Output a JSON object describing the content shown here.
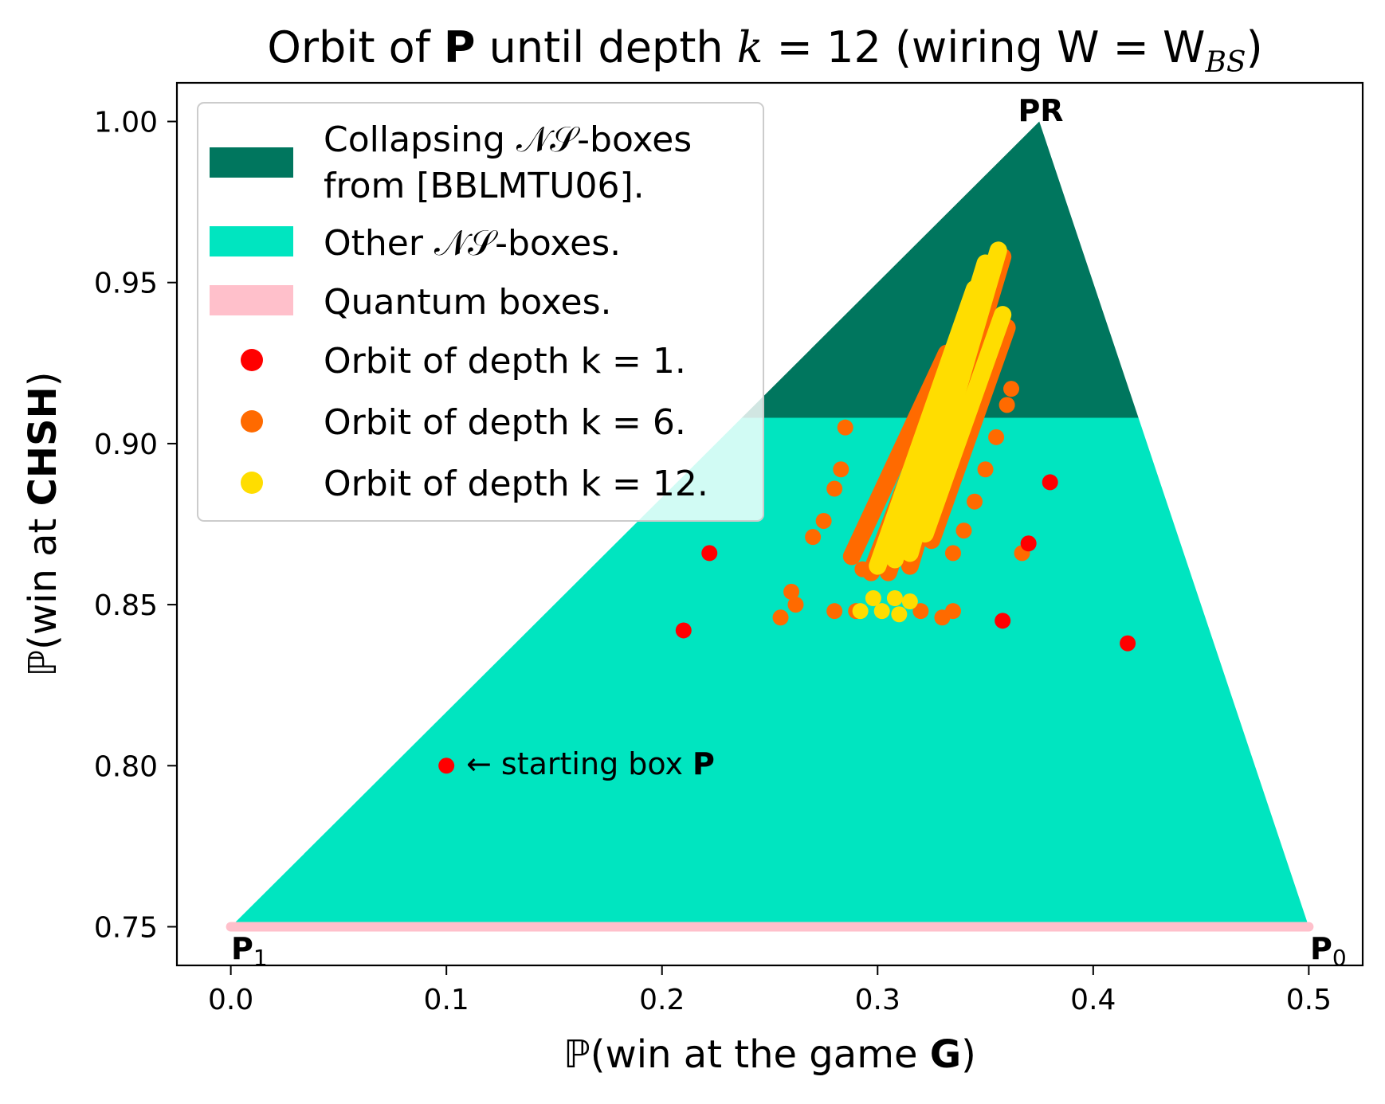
{
  "chart_data": {
    "type": "scatter",
    "title_parts": {
      "pre": "Orbit of ",
      "bold": "P",
      "mid": " until depth ",
      "k": "k",
      "eq": " = 12 (wiring W = W",
      "sub": "BS",
      "post": ")"
    },
    "xlabel_parts": {
      "pre": "ℙ(win at the game ",
      "bold": "G",
      "post": ")"
    },
    "ylabel_parts": {
      "pre": "ℙ(win at ",
      "bold": "CHSH",
      "post": ")"
    },
    "xlim": [
      -0.025,
      0.525
    ],
    "ylim": [
      0.738,
      1.012
    ],
    "xticks": [
      "0.0",
      "0.1",
      "0.2",
      "0.3",
      "0.4",
      "0.5"
    ],
    "yticks": [
      "0.75",
      "0.80",
      "0.85",
      "0.90",
      "0.95",
      "1.00"
    ],
    "regions": {
      "ns_polytope": [
        [
          0.0,
          0.75
        ],
        [
          0.375,
          1.0
        ],
        [
          0.5,
          0.75
        ]
      ],
      "collapse_threshold_y": 0.908
    },
    "quantum_segment": [
      [
        0.0,
        0.75
      ],
      [
        0.5,
        0.75
      ]
    ],
    "vertex_labels": {
      "pr": {
        "text": "PR",
        "x": 0.375,
        "y": 1.0
      },
      "p1": {
        "text": "P",
        "sub": "1",
        "x": 0.0,
        "y": 0.75
      },
      "p0": {
        "text": "P",
        "sub": "0",
        "x": 0.5,
        "y": 0.75
      }
    },
    "annotation": {
      "text": "← starting box ",
      "bold": "P",
      "x": 0.1,
      "y": 0.8
    },
    "legend": {
      "placement": "upper-left",
      "items": [
        {
          "kind": "patch",
          "line1": "Collapsing 𝒩𝒮-boxes",
          "line2": "from [BBLMTU06].",
          "color": "#00765e"
        },
        {
          "kind": "patch",
          "line1": "Other 𝒩𝒮-boxes.",
          "color": "#00e5c0"
        },
        {
          "kind": "patch",
          "line1": "Quantum boxes.",
          "color": "#ffc0cb"
        },
        {
          "kind": "dot",
          "line1": "Orbit of depth k = 1.",
          "color": "#ff0000"
        },
        {
          "kind": "dot",
          "line1": "Orbit of depth k = 6.",
          "color": "#ff6a00"
        },
        {
          "kind": "dot",
          "line1": "Orbit of depth k = 12.",
          "color": "#ffdd00"
        }
      ]
    },
    "colors": {
      "collapsing": "#00765e",
      "other_ns": "#00e5c0",
      "quantum": "#ffc0cb",
      "k1": "#ff0000",
      "k6": "#ff6a00",
      "k12": "#ffdd00"
    },
    "series": [
      {
        "name": "Orbit of depth k = 1.",
        "color": "#ff0000",
        "points": [
          [
            0.1,
            0.8
          ],
          [
            0.21,
            0.842
          ],
          [
            0.222,
            0.866
          ],
          [
            0.358,
            0.845
          ],
          [
            0.38,
            0.888
          ],
          [
            0.416,
            0.838
          ],
          [
            0.37,
            0.869
          ]
        ]
      },
      {
        "name": "Orbit of depth k = 6.",
        "color": "#ff6a00",
        "points": [
          [
            0.255,
            0.846
          ],
          [
            0.26,
            0.854
          ],
          [
            0.262,
            0.85
          ],
          [
            0.27,
            0.871
          ],
          [
            0.275,
            0.876
          ],
          [
            0.28,
            0.886
          ],
          [
            0.283,
            0.892
          ],
          [
            0.285,
            0.905
          ],
          [
            0.28,
            0.848
          ],
          [
            0.29,
            0.848
          ],
          [
            0.293,
            0.861
          ],
          [
            0.32,
            0.848
          ],
          [
            0.33,
            0.846
          ],
          [
            0.335,
            0.848
          ],
          [
            0.335,
            0.866
          ],
          [
            0.34,
            0.873
          ],
          [
            0.345,
            0.882
          ],
          [
            0.35,
            0.892
          ],
          [
            0.355,
            0.902
          ],
          [
            0.36,
            0.912
          ],
          [
            0.362,
            0.917
          ],
          [
            0.367,
            0.866
          ]
        ],
        "streaks": [
          {
            "from": [
              0.288,
              0.865
            ],
            "to": [
              0.332,
              0.928
            ]
          },
          {
            "from": [
              0.297,
              0.86
            ],
            "to": [
              0.345,
              0.942
            ]
          },
          {
            "from": [
              0.305,
              0.86
            ],
            "to": [
              0.352,
              0.955
            ]
          },
          {
            "from": [
              0.315,
              0.862
            ],
            "to": [
              0.358,
              0.958
            ]
          },
          {
            "from": [
              0.325,
              0.87
            ],
            "to": [
              0.36,
              0.936
            ]
          }
        ]
      },
      {
        "name": "Orbit of depth k = 12.",
        "color": "#ffdd00",
        "points": [
          [
            0.292,
            0.848
          ],
          [
            0.298,
            0.852
          ],
          [
            0.302,
            0.848
          ],
          [
            0.308,
            0.852
          ],
          [
            0.31,
            0.847
          ],
          [
            0.315,
            0.851
          ]
        ],
        "streaks": [
          {
            "from": [
              0.3,
              0.862
            ],
            "to": [
              0.345,
              0.948
            ]
          },
          {
            "from": [
              0.308,
              0.864
            ],
            "to": [
              0.35,
              0.956
            ]
          },
          {
            "from": [
              0.315,
              0.866
            ],
            "to": [
              0.356,
              0.96
            ]
          },
          {
            "from": [
              0.322,
              0.872
            ],
            "to": [
              0.358,
              0.94
            ]
          }
        ]
      }
    ]
  }
}
